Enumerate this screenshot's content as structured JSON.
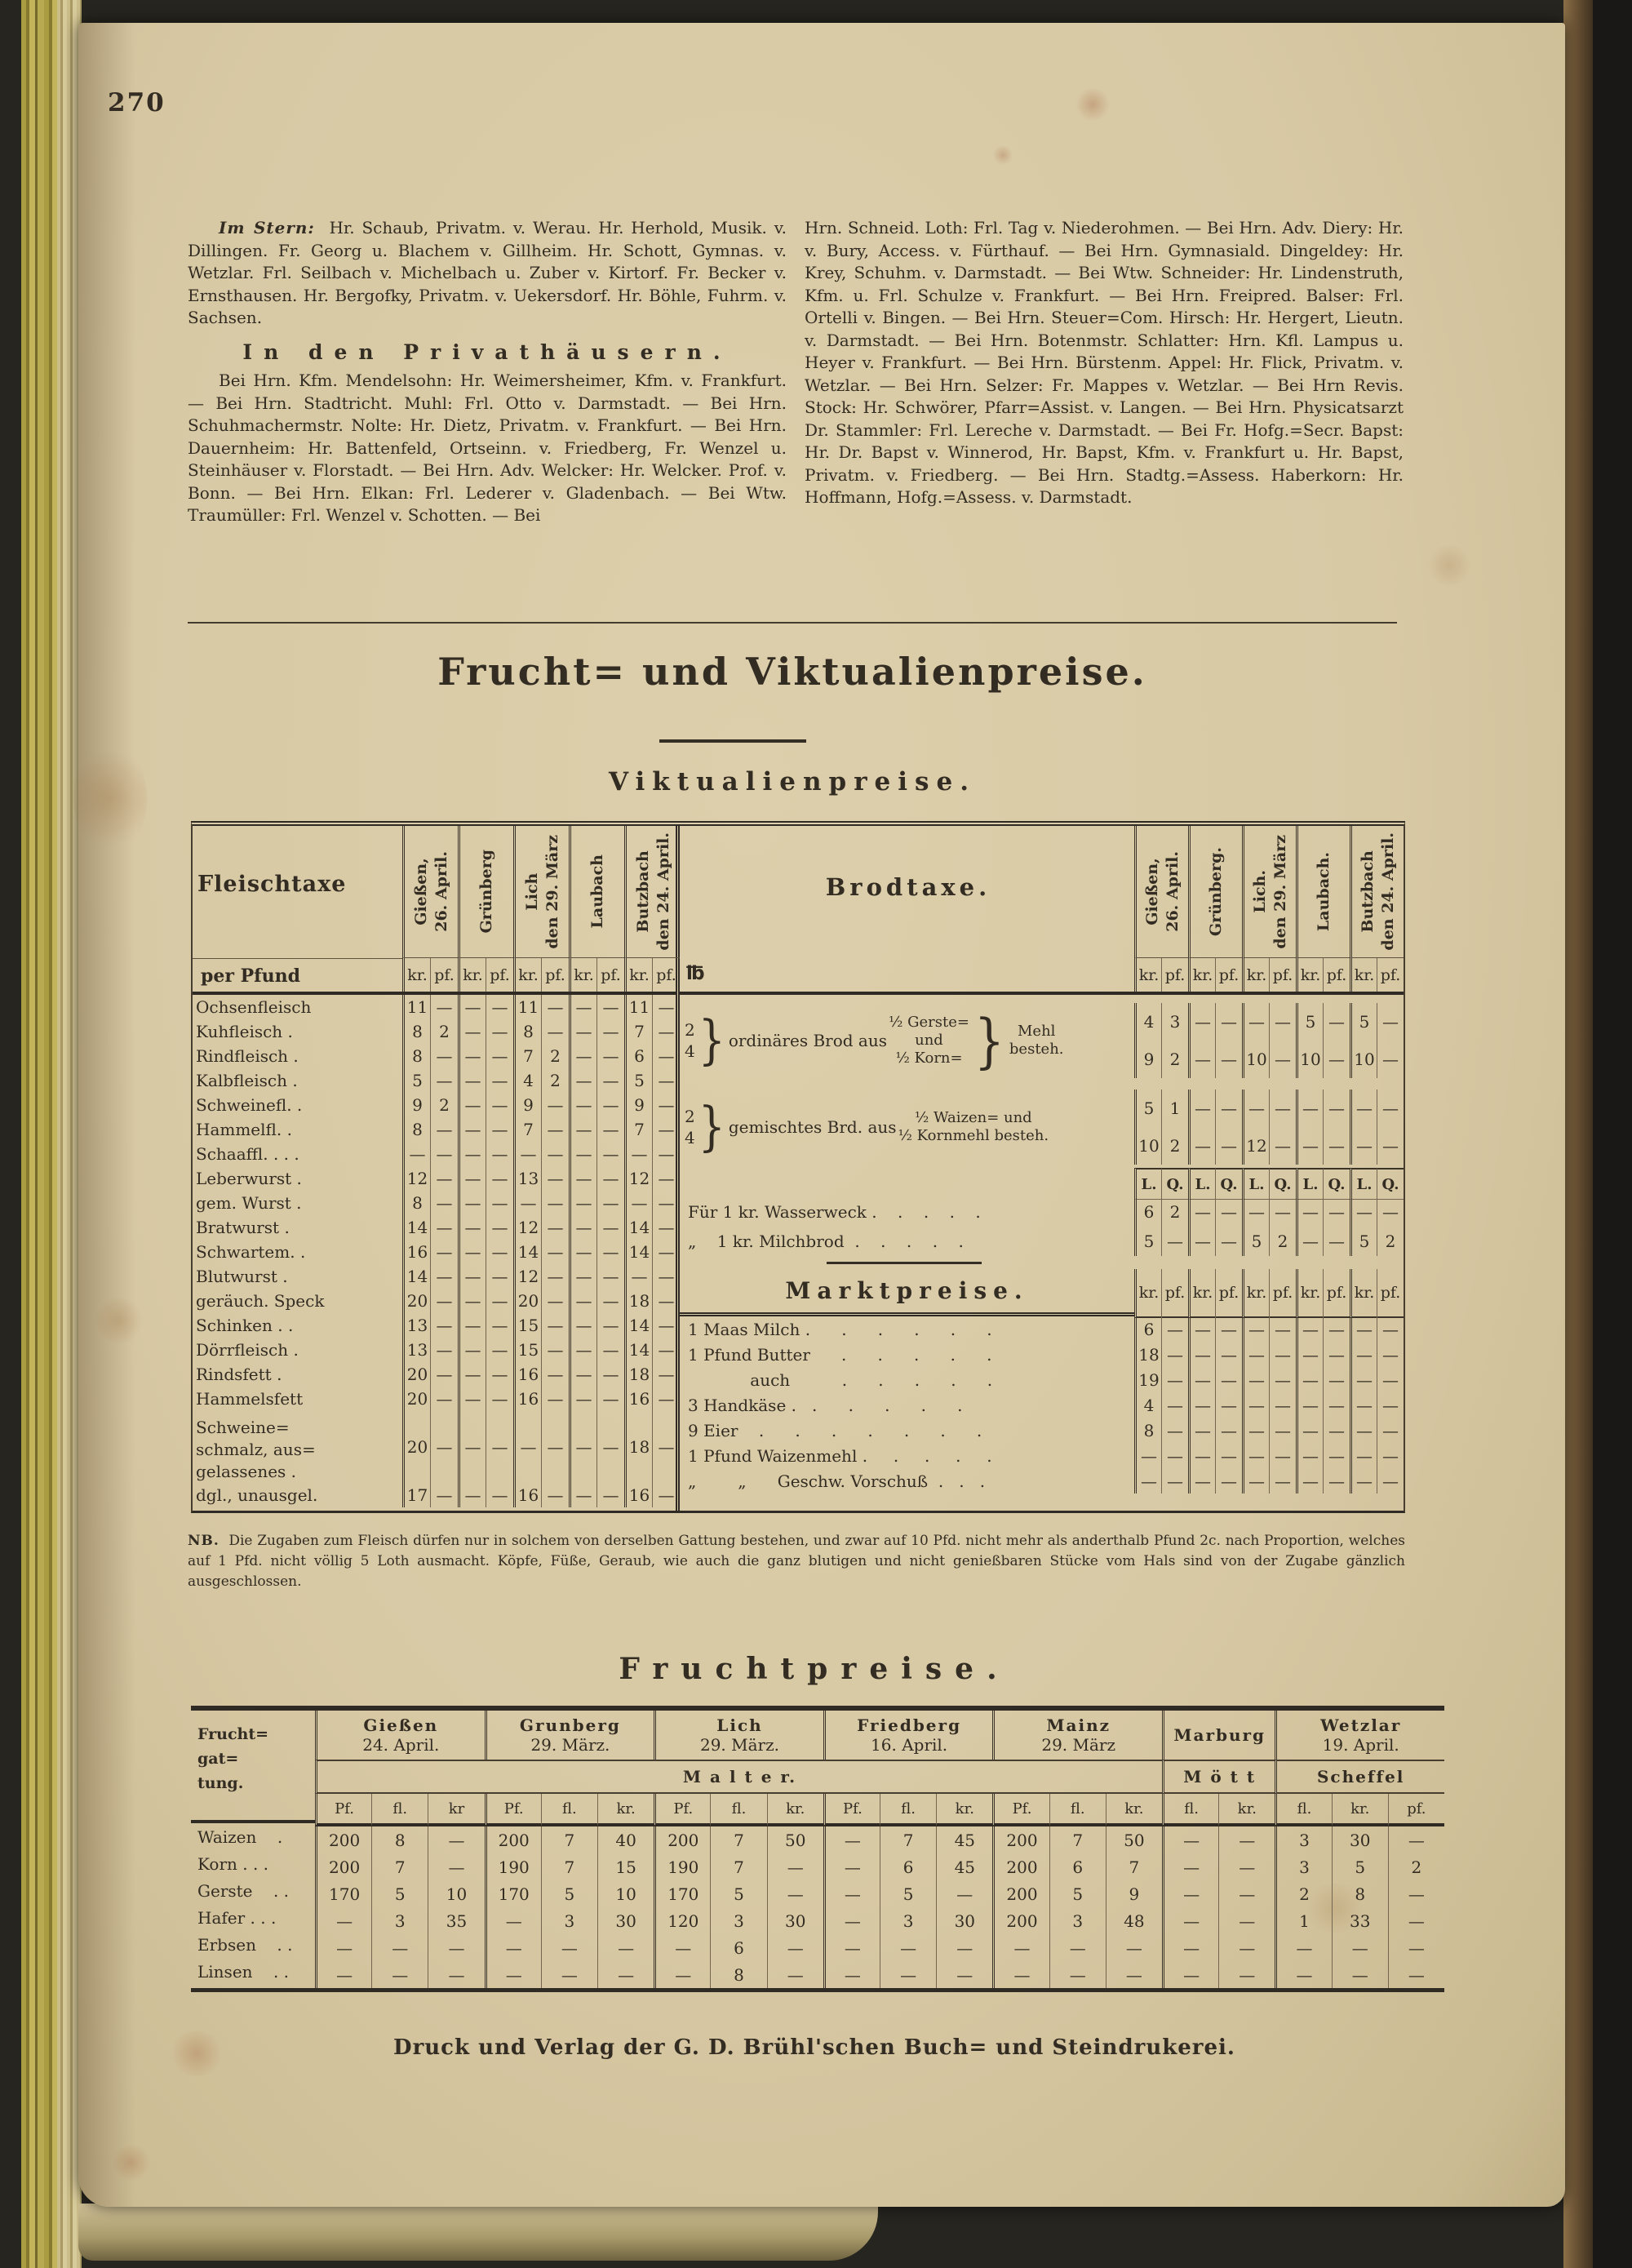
{
  "page_number": "270",
  "colors": {
    "paper": "#d8c9a5",
    "ink": "#332c22",
    "fore_edge": "#b3a544"
  },
  "directory": {
    "lead": "Im Stern:",
    "para1": "Hr. Schaub, Privatm. v. Werau. Hr. Herhold, Musik. v. Dillingen. Fr. Georg u. Blachem v. Gillheim. Hr. Schott, Gymnas. v. Wetzlar. Frl. Seilbach v. Michelbach u. Zuber v. Kirtorf. Fr. Becker v. Ernsthausen. Hr. Bergofky, Privatm. v. Uekersdorf. Hr. Böhle, Fuhrm. v. Sachsen.",
    "heading": "In den Privathäusern.",
    "para2": "Bei Hrn. Kfm. Mendelsohn: Hr. Weimersheimer, Kfm. v. Frankfurt. — Bei Hrn. Stadtricht. Muhl: Frl. Otto v. Darmstadt. — Bei Hrn. Schuhmachermstr. Nolte: Hr. Dietz, Privatm. v. Frankfurt. — Bei Hrn. Dauernheim: Hr. Battenfeld, Ortseinn. v. Friedberg, Fr. Wenzel u. Steinhäuser v. Florstadt. — Bei Hrn. Adv. Welcker: Hr. Welcker. Prof. v. Bonn. — Bei Hrn. Elkan: Frl. Lederer v. Gladenbach. — Bei Wtw. Traumüller: Frl. Wenzel v. Schotten. — Bei",
    "col2": "Hrn. Schneid. Loth: Frl. Tag v. Niederohmen. — Bei Hrn. Adv. Diery: Hr. v. Bury, Access. v. Fürthauf. — Bei Hrn. Gymnasiald. Dingeldey: Hr. Krey, Schuhm. v. Darmstadt. — Bei Wtw. Schneider: Hr. Lindenstruth, Kfm. u. Frl. Schulze v. Frankfurt. — Bei Hrn. Freipred. Balser: Frl. Ortelli v. Bingen. — Bei Hrn. Steuer=Com. Hirsch: Hr. Hergert, Lieutn. v. Darmstadt. — Bei Hrn. Botenmstr. Schlatter: Hrn. Kfl. Lampus u. Heyer v. Frankfurt. — Bei Hrn. Bürstenm. Appel: Hr. Flick, Privatm. v. Wetzlar. — Bei Hrn. Selzer: Fr. Mappes v. Wetzlar. — Bei Hrn Revis. Stock: Hr. Schwörer, Pfarr=Assist. v. Langen. — Bei Hrn. Physicatsarzt Dr. Stammler: Frl. Lereche v. Darmstadt. — Bei Fr. Hofg.=Secr. Bapst: Hr. Dr. Bapst v. Winnerod, Hr. Bapst, Kfm. v. Frankfurt u. Hr. Bapst, Privatm. v. Friedberg. — Bei Hrn. Stadtg.=Assess. Haberkorn: Hr. Hoffmann, Hofg.=Assess. v. Darmstadt."
  },
  "section": {
    "main_title": "Frucht= und Viktualienpreise.",
    "sub_title": "Viktualienpreise."
  },
  "viktualien": {
    "fleischtaxe": {
      "title": "Fleischtaxe",
      "unit": "per Pfund",
      "cities": [
        "Gießen,\n26. April.",
        "Grünberg",
        "Lich\nden 29. März",
        "Laubach",
        "Butzbach\nden 24. April."
      ],
      "subcols": [
        "kr.",
        "pf."
      ],
      "rows": [
        {
          "label": "Ochsenfleisch",
          "v": [
            "11",
            "—",
            "—",
            "—",
            "11",
            "—",
            "—",
            "—",
            "11",
            "—"
          ]
        },
        {
          "label": "Kuhfleisch  .",
          "v": [
            "8",
            "2",
            "—",
            "—",
            "8",
            "—",
            "—",
            "—",
            "7",
            "—"
          ]
        },
        {
          "label": "Rindfleisch  .",
          "v": [
            "8",
            "—",
            "—",
            "—",
            "7",
            "2",
            "—",
            "—",
            "6",
            "—"
          ]
        },
        {
          "label": "Kalbfleisch  .",
          "v": [
            "5",
            "—",
            "—",
            "—",
            "4",
            "2",
            "—",
            "—",
            "5",
            "—"
          ]
        },
        {
          "label": "Schweinefl. .",
          "v": [
            "9",
            "2",
            "—",
            "—",
            "9",
            "—",
            "—",
            "—",
            "9",
            "—"
          ]
        },
        {
          "label": "Hammelfl.  .",
          "v": [
            "8",
            "—",
            "—",
            "—",
            "7",
            "—",
            "—",
            "—",
            "7",
            "—"
          ]
        },
        {
          "label": "Schaaffl. . .  .",
          "v": [
            "—",
            "—",
            "—",
            "—",
            "—",
            "—",
            "—",
            "—",
            "—",
            "—"
          ]
        },
        {
          "label": "Leberwurst  .",
          "v": [
            "12",
            "—",
            "—",
            "—",
            "13",
            "—",
            "—",
            "—",
            "12",
            "—"
          ]
        },
        {
          "label": "gem. Wurst .",
          "v": [
            "8",
            "—",
            "—",
            "—",
            "—",
            "—",
            "—",
            "—",
            "—",
            "—"
          ]
        },
        {
          "label": "Bratwurst  .",
          "v": [
            "14",
            "—",
            "—",
            "—",
            "12",
            "—",
            "—",
            "—",
            "14",
            "—"
          ]
        },
        {
          "label": "Schwartem. .",
          "v": [
            "16",
            "—",
            "—",
            "—",
            "14",
            "—",
            "—",
            "—",
            "14",
            "—"
          ]
        },
        {
          "label": "Blutwurst  .",
          "v": [
            "14",
            "—",
            "—",
            "—",
            "12",
            "—",
            "—",
            "—",
            "—",
            "—"
          ]
        },
        {
          "label": "geräuch. Speck",
          "v": [
            "20",
            "—",
            "—",
            "—",
            "20",
            "—",
            "—",
            "—",
            "18",
            "—"
          ]
        },
        {
          "label": "Schinken  . .",
          "v": [
            "13",
            "—",
            "—",
            "—",
            "15",
            "—",
            "—",
            "—",
            "14",
            "—"
          ]
        },
        {
          "label": "Dörrfleisch  .",
          "v": [
            "13",
            "—",
            "—",
            "—",
            "15",
            "—",
            "—",
            "—",
            "14",
            "—"
          ]
        },
        {
          "label": "Rindsfett  .",
          "v": [
            "20",
            "—",
            "—",
            "—",
            "16",
            "—",
            "—",
            "—",
            "18",
            "—"
          ]
        },
        {
          "label": "Hammelsfett",
          "v": [
            "20",
            "—",
            "—",
            "—",
            "16",
            "—",
            "—",
            "—",
            "16",
            "—"
          ]
        },
        {
          "label": "Schweine=\nschmalz, aus=\ngelassenes  .",
          "tall": true,
          "v": [
            "20",
            "—",
            "—",
            "—",
            "—",
            "—",
            "—",
            "—",
            "18",
            "—"
          ]
        },
        {
          "label": "dgl., unausgel.",
          "v": [
            "17",
            "—",
            "—",
            "—",
            "16",
            "—",
            "—",
            "—",
            "16",
            "—"
          ]
        }
      ]
    },
    "brodtaxe": {
      "title": "Brodtaxe.",
      "pound": "℔",
      "cities": [
        "Gießen,\n26. April.",
        "Grünberg.",
        "Lich.\nden 29. März",
        "Laubach.",
        "Butzbach\nden 24. April."
      ],
      "subcols": [
        "kr.",
        "pf."
      ],
      "group1": {
        "nums": "2\n4",
        "brace": "}",
        "text": "ordinäres Brod aus",
        "mid": "½ Gerste=\nund\n½ Korn=",
        "brace2": "}",
        "tail": "Mehl\nbesteh.",
        "rows": [
          [
            "4",
            "3",
            "—",
            "—",
            "—",
            "—",
            "5",
            "—",
            "5",
            "—"
          ],
          [
            "9",
            "2",
            "—",
            "—",
            "10",
            "—",
            "10",
            "—",
            "10",
            "—"
          ]
        ]
      },
      "group2": {
        "nums": "2\n4",
        "brace": "}",
        "text": "gemischtes Brd. aus",
        "mid": "½ Waizen= und\n½ Kornmehl besteh.",
        "rows": [
          [
            "5",
            "1",
            "—",
            "—",
            "—",
            "—",
            "—",
            "—",
            "—",
            "—"
          ],
          [
            "10",
            "2",
            "—",
            "—",
            "12",
            "—",
            "—",
            "—",
            "—",
            "—"
          ]
        ]
      },
      "weight_subcols": [
        "L.",
        "Q."
      ],
      "loaf_rows": [
        {
          "label": "Für 1 kr. Wasserweck .    .    .    .    .",
          "v": [
            "6",
            "2",
            "—",
            "—",
            "—",
            "—",
            "—",
            "—",
            "—",
            "—"
          ]
        },
        {
          "label": "„    1 kr. Milchbrod  .    .    .    .    .",
          "v": [
            "5",
            "—",
            "—",
            "—",
            "5",
            "2",
            "—",
            "—",
            "5",
            "2"
          ]
        }
      ]
    },
    "marktpreise": {
      "title": "Marktpreise.",
      "subcols": [
        "kr.",
        "pf."
      ],
      "rows": [
        {
          "label": "1 Maas Milch .      .      .      .      .      .",
          "v": [
            "6",
            "—",
            "—",
            "—",
            "—",
            "—",
            "—",
            "—",
            "—",
            "—"
          ]
        },
        {
          "label": "1 Pfund Butter      .      .      .      .      .",
          "v": [
            "18",
            "—",
            "—",
            "—",
            "—",
            "—",
            "—",
            "—",
            "—",
            "—"
          ]
        },
        {
          "label": "            auch          .      .      .      .      .",
          "v": [
            "19",
            "—",
            "—",
            "—",
            "—",
            "—",
            "—",
            "—",
            "—",
            "—"
          ]
        },
        {
          "label": "3 Handkäse .   .      .      .      .      .",
          "v": [
            "4",
            "—",
            "—",
            "—",
            "—",
            "—",
            "—",
            "—",
            "—",
            "—"
          ]
        },
        {
          "label": "9 Eier    .      .      .      .      .      .      .",
          "v": [
            "8",
            "—",
            "—",
            "—",
            "—",
            "—",
            "—",
            "—",
            "—",
            "—"
          ]
        },
        {
          "label": "1 Pfund Waizenmehl .     .     .     .     .",
          "v": [
            "—",
            "—",
            "—",
            "—",
            "—",
            "—",
            "—",
            "—",
            "—",
            "—"
          ]
        },
        {
          "label": "„        „      Geschw. Vorschuß  .   .   .",
          "v": [
            "—",
            "—",
            "—",
            "—",
            "—",
            "—",
            "—",
            "—",
            "—",
            "—"
          ]
        }
      ]
    },
    "nb_note_lead": "NB.",
    "nb_note": "Die Zugaben zum Fleisch dürfen nur in solchem von derselben Gattung bestehen, und zwar auf 10 Pfd. nicht mehr als anderthalb Pfund 2c. nach Proportion, welches auf 1 Pfd. nicht völlig 5 Loth ausmacht. Köpfe, Füße, Geraub, wie auch die ganz blutigen und nicht genießbaren Stücke vom Hals sind von der Zugabe gänzlich ausgeschlossen."
  },
  "fruchtpreise": {
    "title": "Fruchtpreise.",
    "col1_header": "Frucht=\ngat=\ntung.",
    "groups": [
      {
        "name": "Gießen",
        "date": "24. April.",
        "span": 3
      },
      {
        "name": "Grunberg",
        "date": "29. März.",
        "span": 3
      },
      {
        "name": "Lich",
        "date": "29. März.",
        "span": 3
      },
      {
        "name": "Friedberg",
        "date": "16. April.",
        "span": 3
      },
      {
        "name": "Mainz",
        "date": "29. März",
        "span": 3
      },
      {
        "name": "Marburg",
        "date": "",
        "span": 2
      },
      {
        "name": "Wetzlar",
        "date": "19. April.",
        "span": 3
      }
    ],
    "measure_row": [
      {
        "label": "M   a   l   t   e   r.",
        "span": 15
      },
      {
        "label": "M ö t t",
        "span": 2
      },
      {
        "label": "Scheffel",
        "span": 3
      }
    ],
    "subcols": [
      "Pf.",
      "fl.",
      "kr",
      "Pf.",
      "fl.",
      "kr.",
      "Pf.",
      "fl.",
      "kr.",
      "Pf.",
      "fl.",
      "kr.",
      "Pf.",
      "fl.",
      "kr.",
      "fl.",
      "kr.",
      "fl.",
      "kr.",
      "pf."
    ],
    "rows": [
      {
        "label": "Waizen    .",
        "v": [
          "200",
          "8",
          "—",
          "200",
          "7",
          "40",
          "200",
          "7",
          "50",
          "—",
          "7",
          "45",
          "200",
          "7",
          "50",
          "—",
          "—",
          "3",
          "30",
          "—"
        ]
      },
      {
        "label": "Korn . . .",
        "v": [
          "200",
          "7",
          "—",
          "190",
          "7",
          "15",
          "190",
          "7",
          "—",
          "—",
          "6",
          "45",
          "200",
          "6",
          "7",
          "—",
          "—",
          "3",
          "5",
          "2"
        ]
      },
      {
        "label": "Gerste    . .",
        "v": [
          "170",
          "5",
          "10",
          "170",
          "5",
          "10",
          "170",
          "5",
          "—",
          "—",
          "5",
          "—",
          "200",
          "5",
          "9",
          "—",
          "—",
          "2",
          "8",
          "—"
        ]
      },
      {
        "label": "Hafer . . .",
        "v": [
          "—",
          "3",
          "35",
          "—",
          "3",
          "30",
          "120",
          "3",
          "30",
          "—",
          "3",
          "30",
          "200",
          "3",
          "48",
          "—",
          "—",
          "1",
          "33",
          "—"
        ]
      },
      {
        "label": "Erbsen    . .",
        "v": [
          "—",
          "—",
          "—",
          "—",
          "—",
          "—",
          "—",
          "6",
          "—",
          "—",
          "—",
          "—",
          "—",
          "—",
          "—",
          "—",
          "—",
          "—",
          "—",
          "—"
        ]
      },
      {
        "label": "Linsen    . .",
        "v": [
          "—",
          "—",
          "—",
          "—",
          "—",
          "—",
          "—",
          "8",
          "—",
          "—",
          "—",
          "—",
          "—",
          "—",
          "—",
          "—",
          "—",
          "—",
          "—",
          "—"
        ]
      }
    ]
  },
  "imprint": "Druck und Verlag der G. D. Brühl'schen Buch= und Steindrukerei."
}
